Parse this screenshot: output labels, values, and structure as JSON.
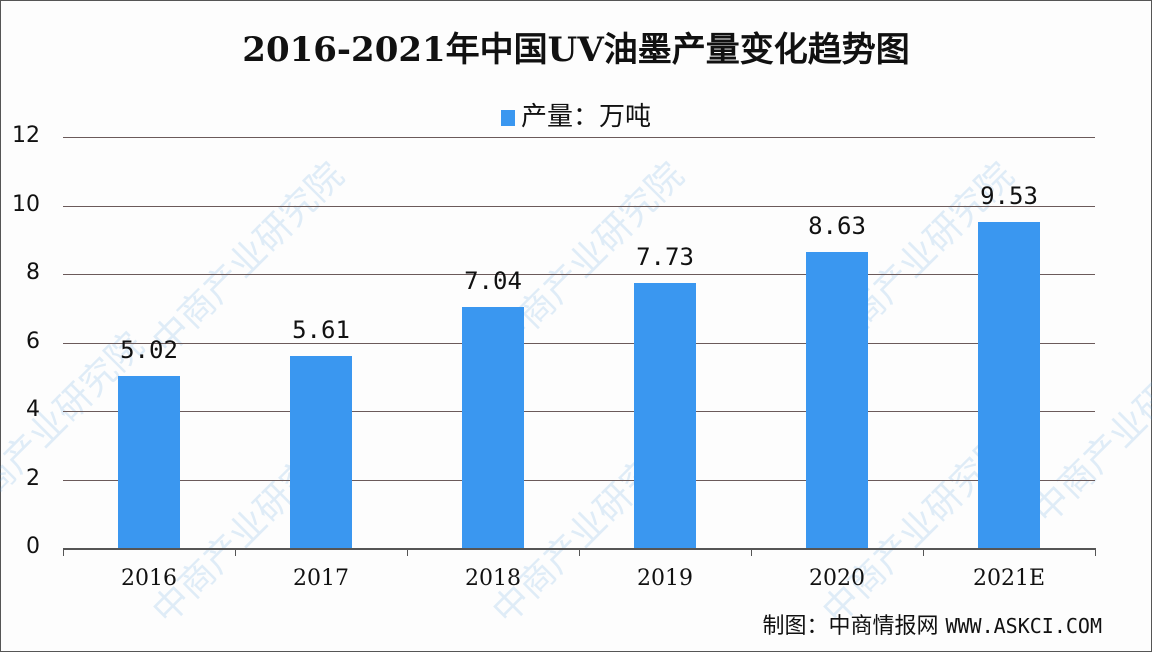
{
  "chart_data": {
    "type": "bar",
    "title": "2016-2021年中国UV油墨产量变化趋势图",
    "legend": [
      {
        "name": "产量：万吨",
        "color": "#3a97f0"
      }
    ],
    "legend_position": "top",
    "categories": [
      "2016",
      "2017",
      "2018",
      "2019",
      "2020",
      "2021E"
    ],
    "series": [
      {
        "name": "产量：万吨",
        "values": [
          5.02,
          5.61,
          7.04,
          7.73,
          8.63,
          9.53
        ]
      }
    ],
    "value_labels": [
      "5.02",
      "5.61",
      "7.04",
      "7.73",
      "8.63",
      "9.53"
    ],
    "xlabel": "",
    "ylabel": "",
    "ylim": [
      0,
      12
    ],
    "yticks": [
      "0",
      "2",
      "4",
      "6",
      "8",
      "10",
      "12"
    ],
    "grid": true
  },
  "source": {
    "prefix": "制图：中商情报网",
    "url": "WWW.ASKCI.COM"
  },
  "watermark": "中商产业研究院",
  "colors": {
    "bar": "#3a97f0",
    "grid": "#6b5a5a"
  }
}
